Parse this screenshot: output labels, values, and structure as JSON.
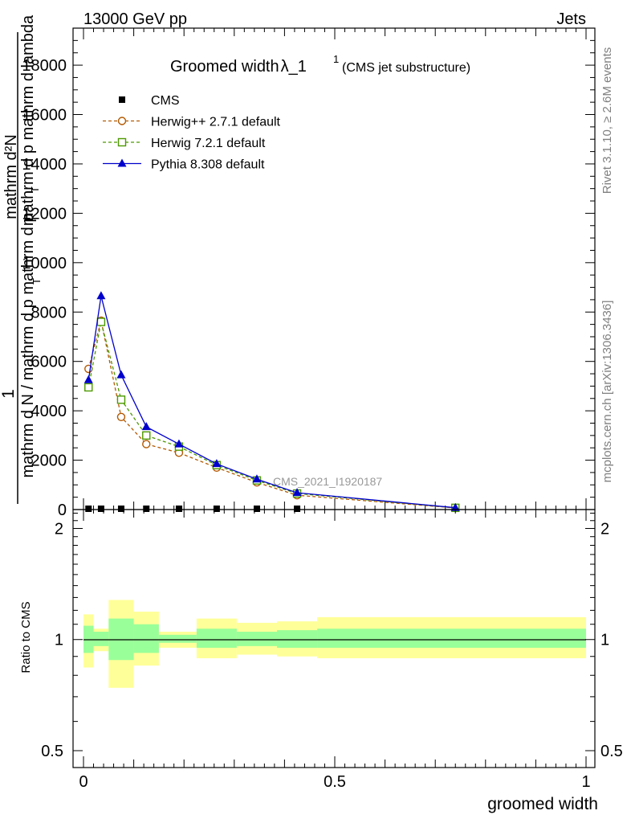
{
  "header": {
    "left": "13000 GeV pp",
    "right": "Jets"
  },
  "title": {
    "main": "Groomed width",
    "symbol": "λ_1",
    "superscript": "1",
    "sub": "(CMS jet substructure)"
  },
  "side_labels": {
    "rivet": "Rivet 3.1.10, ≥ 2.6M events",
    "mcplots": "mcplots.cern.ch [arXiv:1306.3436]"
  },
  "watermark": "CMS_2021_I1920187",
  "ylabel_main": {
    "prefix": "1",
    "numerator": "mathrm d²N",
    "numerator_sub": "T",
    "numerator_rest": "mathrm d p  mathrm d lambda",
    "denominator": "mathrm d N / mathrm d p  mathrm d p",
    "denominator_sub": "T"
  },
  "ylabel_ratio": "Ratio to CMS",
  "xlabel": "groomed width",
  "chart_data": {
    "type": "line",
    "xlim": [
      -0.02,
      1.0
    ],
    "main": {
      "ylim": [
        0,
        19500
      ],
      "yticks": [
        0,
        2000,
        4000,
        6000,
        8000,
        10000,
        12000,
        14000,
        16000,
        18000
      ],
      "ytick_labels": [
        "0",
        "2000",
        "4000",
        "6000",
        "8000",
        "10000",
        "12000",
        "14000",
        "16000",
        "18000"
      ]
    },
    "ratio": {
      "ylim": [
        0.45,
        2.25
      ],
      "log": true,
      "yticks": [
        0.5,
        1,
        2
      ],
      "ytick_labels": [
        "0.5",
        "1",
        "2"
      ]
    },
    "xticks": [
      0,
      0.5,
      1
    ],
    "xtick_labels": [
      "0",
      "0.5",
      "1"
    ],
    "series": [
      {
        "name": "CMS",
        "color": "#000000",
        "marker": "square",
        "x": [
          0.01,
          0.035,
          0.075,
          0.125,
          0.19,
          0.265,
          0.345,
          0.425,
          0.74
        ],
        "y": [
          0,
          0,
          0,
          0,
          0,
          0,
          0,
          0,
          0
        ]
      },
      {
        "name": "Herwig++ 2.7.1 default",
        "color": "#b35900",
        "marker": "circle",
        "dash": true,
        "x": [
          0.01,
          0.035,
          0.075,
          0.125,
          0.19,
          0.265,
          0.345,
          0.425,
          0.74
        ],
        "y": [
          5700,
          7650,
          3750,
          2650,
          2300,
          1700,
          1100,
          580,
          60
        ]
      },
      {
        "name": "Herwig 7.2.1 default",
        "color": "#4d9900",
        "marker": "square-open",
        "dash": true,
        "x": [
          0.01,
          0.035,
          0.075,
          0.125,
          0.19,
          0.265,
          0.345,
          0.425,
          0.74
        ],
        "y": [
          4950,
          7600,
          4450,
          3000,
          2550,
          1800,
          1180,
          650,
          70
        ]
      },
      {
        "name": "Pythia 8.308 default",
        "color": "#0000cc",
        "marker": "triangle",
        "dash": false,
        "x": [
          0.01,
          0.035,
          0.075,
          0.125,
          0.19,
          0.265,
          0.345,
          0.425,
          0.74
        ],
        "y": [
          5250,
          8650,
          5450,
          3350,
          2650,
          1850,
          1230,
          680,
          75
        ]
      }
    ],
    "ratio_bands": [
      {
        "x0": 0.0,
        "x1": 0.02,
        "stat": [
          0.92,
          1.09
        ],
        "total": [
          0.84,
          1.17
        ]
      },
      {
        "x0": 0.02,
        "x1": 0.05,
        "stat": [
          0.96,
          1.05
        ],
        "total": [
          0.93,
          1.07
        ]
      },
      {
        "x0": 0.05,
        "x1": 0.1,
        "stat": [
          0.88,
          1.14
        ],
        "total": [
          0.74,
          1.28
        ]
      },
      {
        "x0": 0.1,
        "x1": 0.15,
        "stat": [
          0.92,
          1.1
        ],
        "total": [
          0.85,
          1.19
        ]
      },
      {
        "x0": 0.15,
        "x1": 0.225,
        "stat": [
          0.98,
          1.03
        ],
        "total": [
          0.95,
          1.05
        ]
      },
      {
        "x0": 0.225,
        "x1": 0.305,
        "stat": [
          0.95,
          1.07
        ],
        "total": [
          0.89,
          1.14
        ]
      },
      {
        "x0": 0.305,
        "x1": 0.385,
        "stat": [
          0.96,
          1.05
        ],
        "total": [
          0.91,
          1.11
        ]
      },
      {
        "x0": 0.385,
        "x1": 0.465,
        "stat": [
          0.95,
          1.06
        ],
        "total": [
          0.9,
          1.12
        ]
      },
      {
        "x0": 0.465,
        "x1": 1.0,
        "stat": [
          0.95,
          1.07
        ],
        "total": [
          0.89,
          1.15
        ]
      }
    ]
  }
}
